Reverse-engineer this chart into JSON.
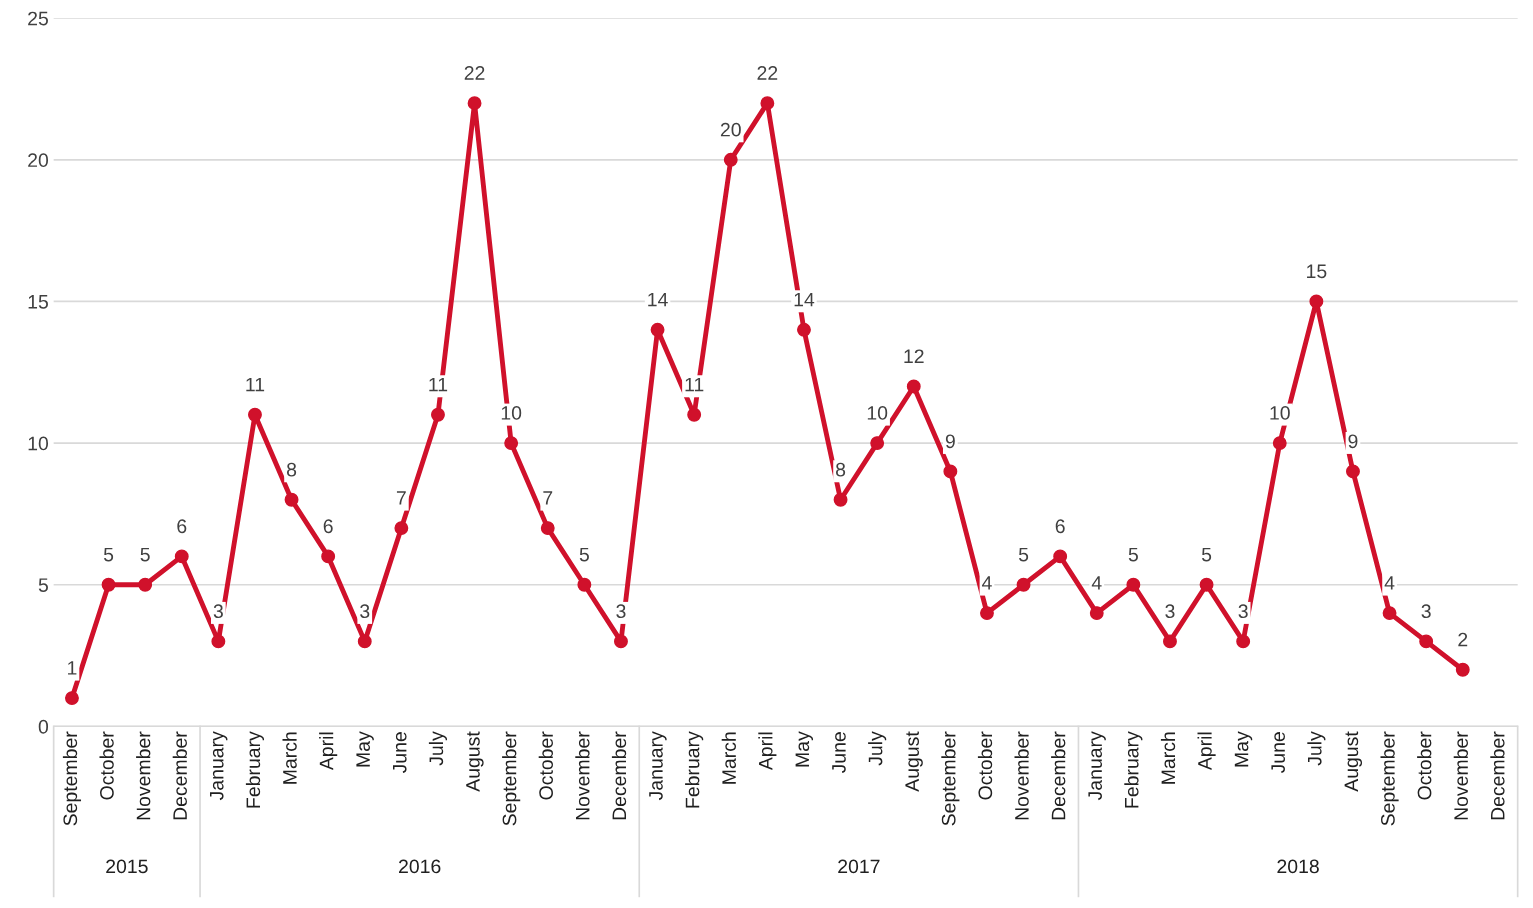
{
  "chart_data": {
    "type": "line",
    "categories": [
      "September",
      "October",
      "November",
      "December",
      "January",
      "February",
      "March",
      "April",
      "May",
      "June",
      "July",
      "August",
      "September",
      "October",
      "November",
      "December",
      "January",
      "February",
      "March",
      "April",
      "May",
      "June",
      "July",
      "August",
      "September",
      "October",
      "November",
      "December",
      "January",
      "February",
      "March",
      "April",
      "May",
      "June",
      "July",
      "August",
      "September",
      "October",
      "November",
      "December"
    ],
    "series": [
      {
        "color": "#d0112b",
        "values": [
          1,
          5,
          5,
          6,
          3,
          11,
          8,
          6,
          3,
          7,
          11,
          22,
          10,
          7,
          5,
          3,
          14,
          11,
          20,
          22,
          14,
          8,
          10,
          12,
          9,
          4,
          5,
          6,
          4,
          5,
          3,
          5,
          3,
          10,
          15,
          9,
          4,
          3,
          2,
          null
        ]
      }
    ],
    "annotations": [
      "2015",
      "2016",
      "2017",
      "2018"
    ],
    "ylim": [
      0,
      25
    ],
    "yticks": [
      0,
      5,
      10,
      15,
      20,
      25
    ],
    "grid": "y",
    "marker": "circle",
    "line_style": "solid",
    "data_labels": true,
    "legend": false
  }
}
